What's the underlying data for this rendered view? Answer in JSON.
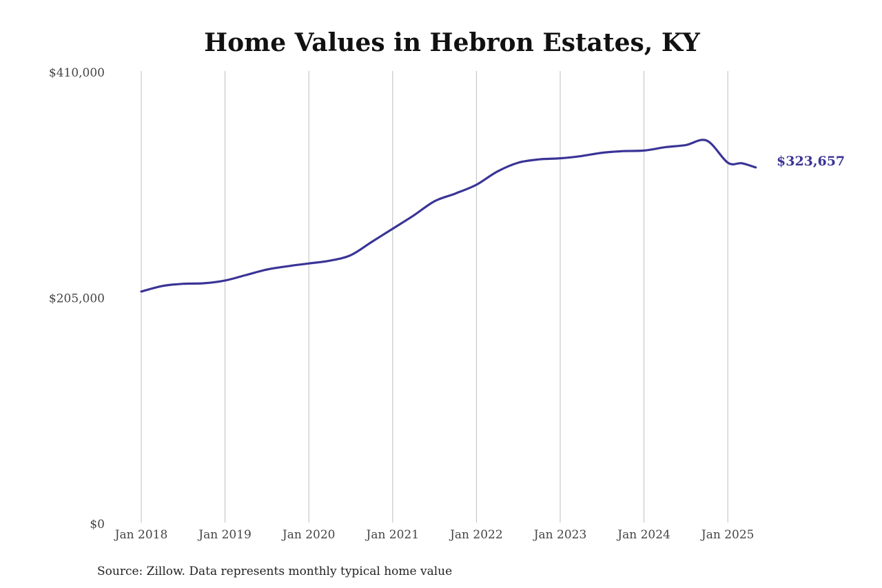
{
  "chart_data": {
    "type": "line",
    "title": "Home Values in Hebron Estates, KY",
    "xlabel": "",
    "ylabel": "",
    "source": "Source: Zillow. Data represents monthly typical home value",
    "ylim": [
      0,
      410000
    ],
    "y_ticks": [
      0,
      205000,
      410000
    ],
    "y_tick_labels": [
      "$0",
      "$205,000",
      "$410,000"
    ],
    "x_ticks": [
      "2018-01",
      "2019-01",
      "2020-01",
      "2021-01",
      "2022-01",
      "2023-01",
      "2024-01",
      "2025-01"
    ],
    "x_tick_labels": [
      "Jan 2018",
      "Jan 2019",
      "Jan 2020",
      "Jan 2021",
      "Jan 2022",
      "Jan 2023",
      "Jan 2024",
      "Jan 2025"
    ],
    "xlim": [
      "2018-01",
      "2025-05"
    ],
    "grid": "vertical",
    "line_color": "#3a3496",
    "end_label": "$323,657",
    "series": [
      {
        "x": [
          "2018-01",
          "2018-04",
          "2018-07",
          "2018-10",
          "2019-01",
          "2019-04",
          "2019-07",
          "2019-10",
          "2020-01",
          "2020-04",
          "2020-07",
          "2020-10",
          "2021-01",
          "2021-04",
          "2021-07",
          "2021-10",
          "2022-01",
          "2022-04",
          "2022-07",
          "2022-10",
          "2023-01",
          "2023-04",
          "2023-07",
          "2023-10",
          "2024-01",
          "2024-04",
          "2024-07",
          "2024-10",
          "2025-01",
          "2025-03",
          "2025-05"
        ],
        "values": [
          211000,
          216000,
          218000,
          218500,
          221000,
          226000,
          231000,
          234000,
          236500,
          239000,
          244000,
          256000,
          268000,
          280000,
          293000,
          300000,
          308000,
          320000,
          328000,
          331000,
          332000,
          334000,
          337000,
          338500,
          339000,
          342000,
          344000,
          348000,
          328000,
          327500,
          323657
        ]
      }
    ]
  }
}
